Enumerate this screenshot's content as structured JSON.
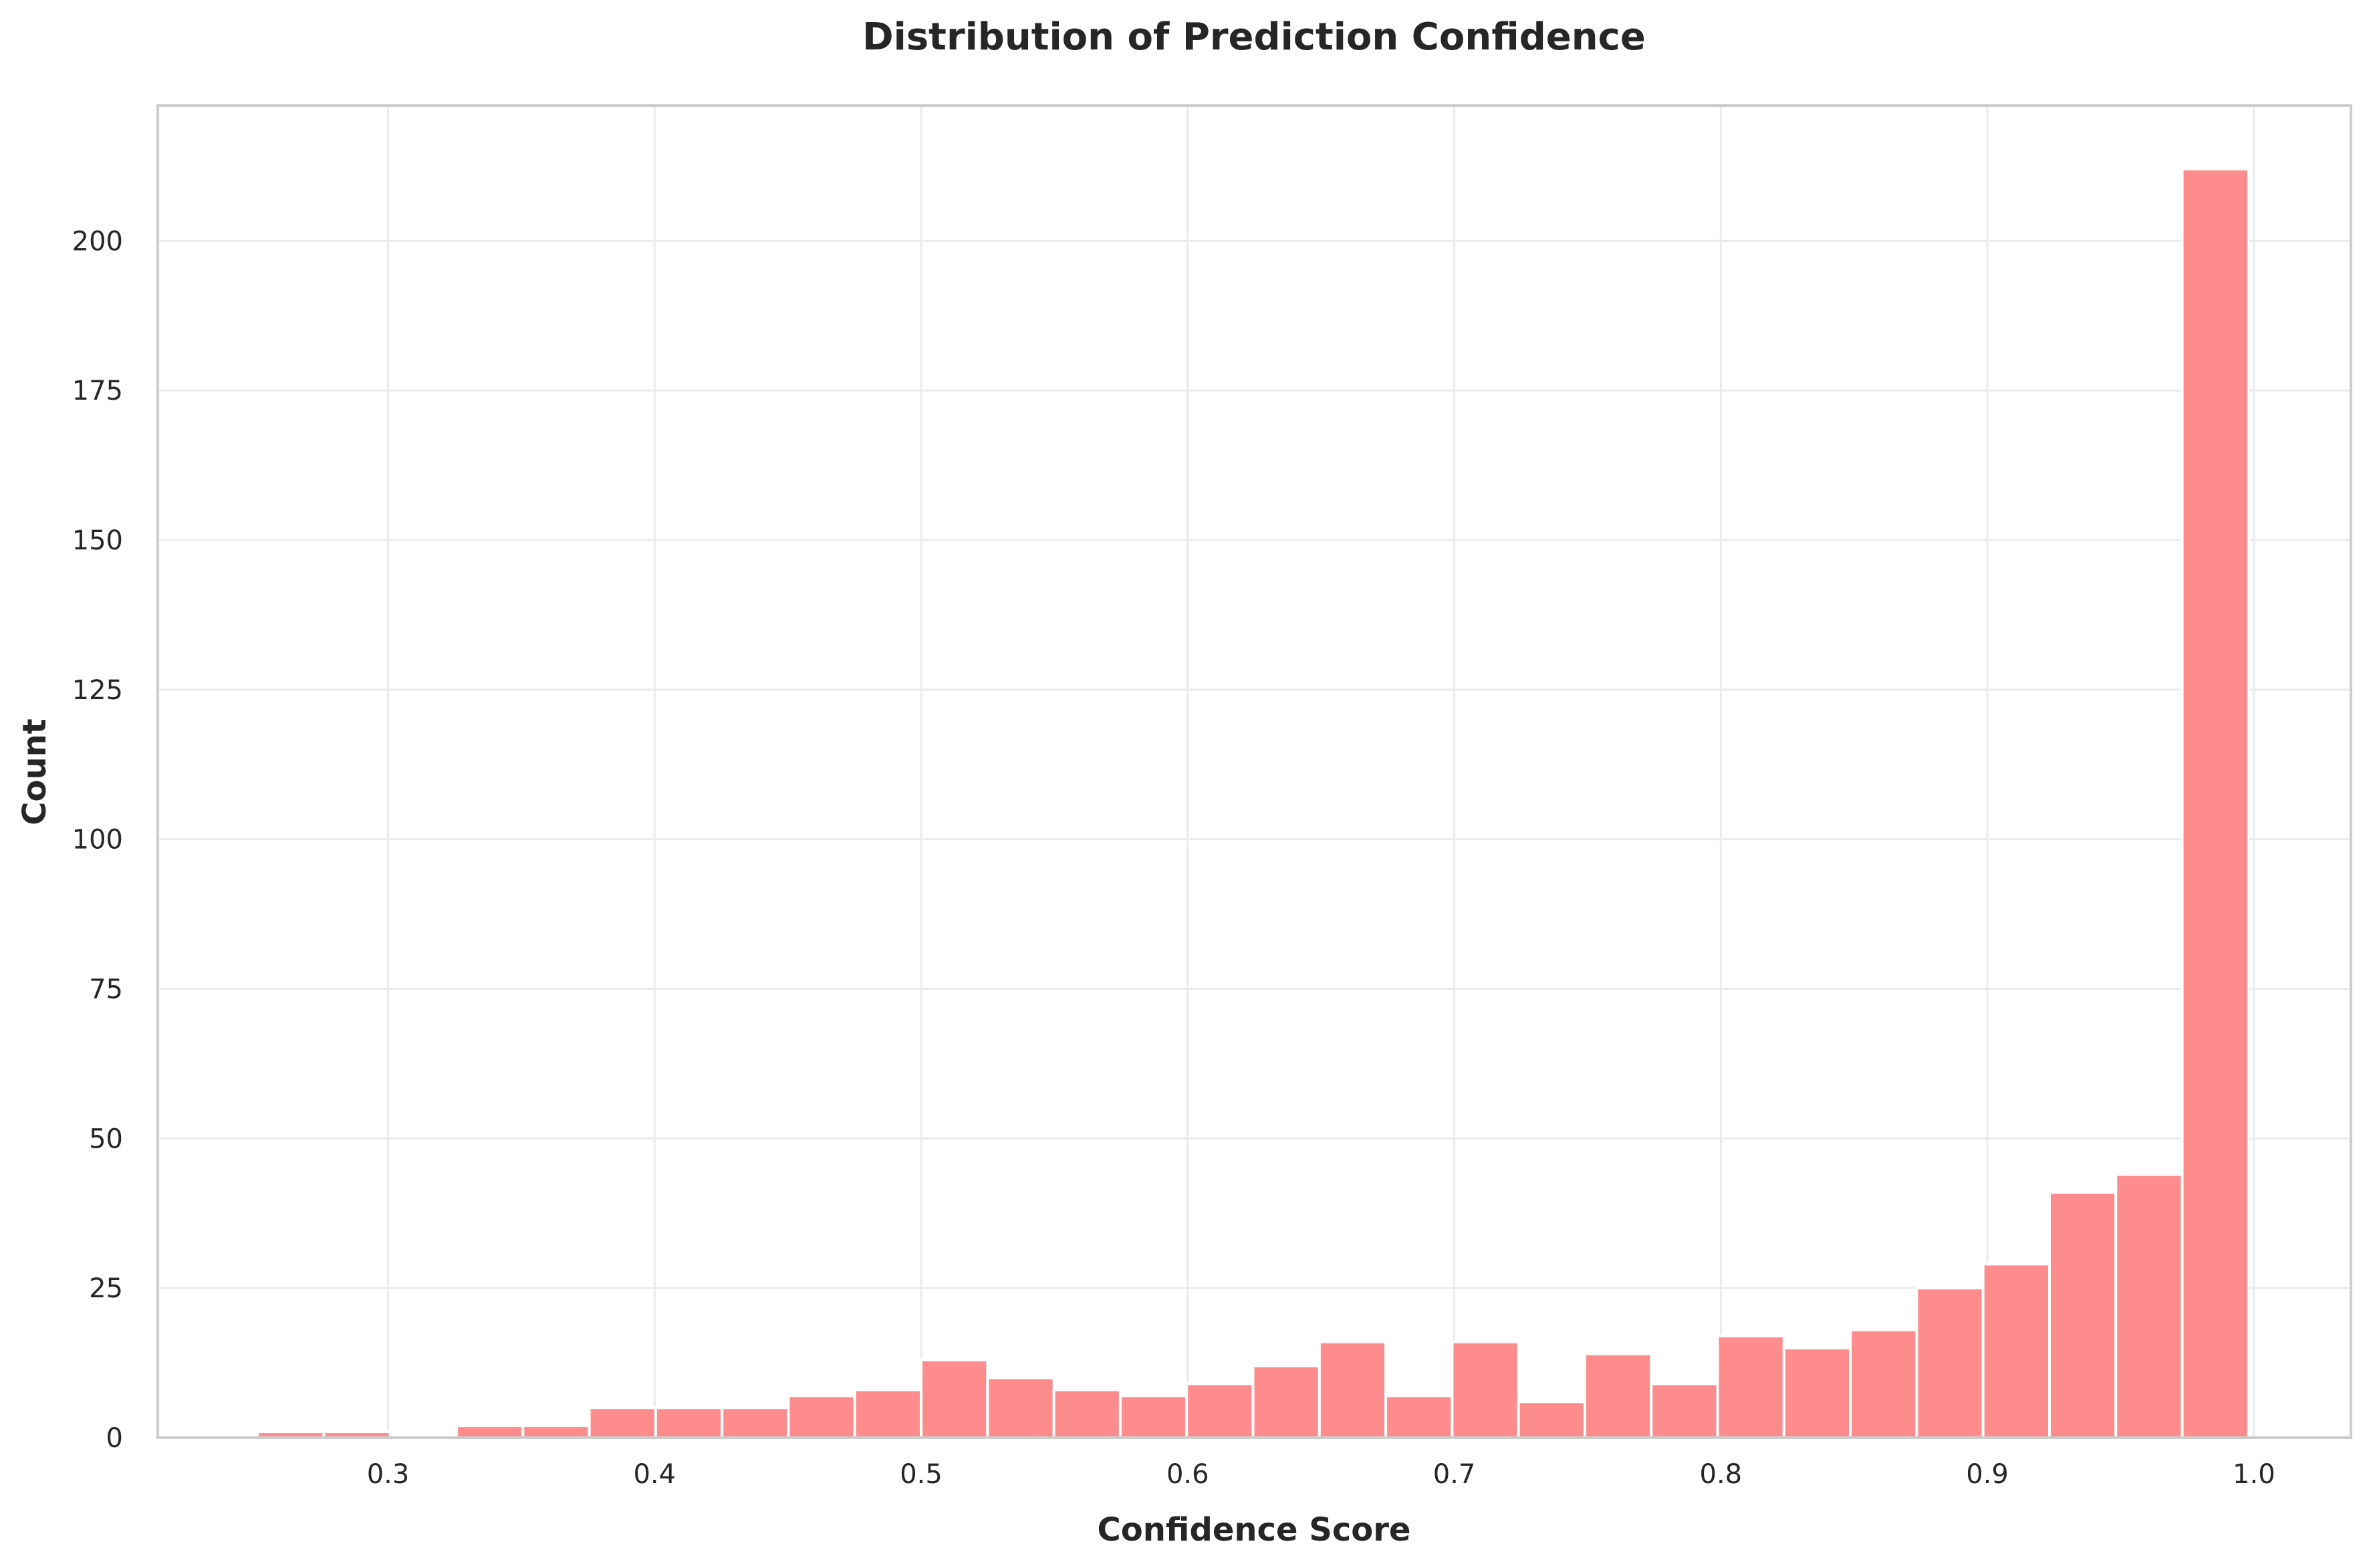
{
  "chart_data": {
    "type": "bar",
    "title": "Distribution of Prediction Confidence",
    "xlabel": "Confidence Score",
    "ylabel": "Count",
    "xlim": [
      0.2136,
      1.0364
    ],
    "ylim": [
      0,
      222.6
    ],
    "xticks": [
      "0.3",
      "0.4",
      "0.5",
      "0.6",
      "0.7",
      "0.8",
      "0.9",
      "1.0"
    ],
    "yticks": [
      "0",
      "25",
      "50",
      "75",
      "100",
      "125",
      "150",
      "175",
      "200"
    ],
    "grid": true,
    "bar_color": "#ff8c8c",
    "bins": {
      "start": 0.251,
      "width": 0.0249,
      "counts": [
        1,
        1,
        0,
        2,
        2,
        5,
        5,
        5,
        7,
        8,
        13,
        10,
        8,
        7,
        9,
        12,
        16,
        7,
        16,
        6,
        14,
        9,
        17,
        15,
        18,
        25,
        29,
        41,
        44,
        212
      ]
    }
  }
}
